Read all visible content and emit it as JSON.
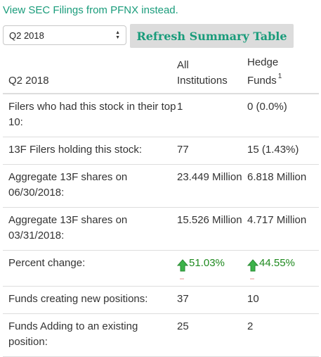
{
  "top_link": "View SEC Filings from PFNX instead.",
  "controls": {
    "quarter_select_value": "Q2 2018",
    "refresh_label": "Refresh Summary Table"
  },
  "table": {
    "headers": {
      "period": "Q2 2018",
      "all_institutions_line1": "All",
      "all_institutions_line2": "Institutions",
      "hedge_funds_line1": "Hedge",
      "hedge_funds_line2": "Funds",
      "hedge_funds_footnote": "1"
    },
    "rows": [
      {
        "label": "Filers who had this stock in their top 10:",
        "all": "1",
        "hedge": "0 (0.0%)"
      },
      {
        "label": "13F Filers holding this stock:",
        "all": "77",
        "hedge": "15 (1.43%)"
      },
      {
        "label": "Aggregate 13F shares on 06/30/2018:",
        "all": "23.449 Million",
        "hedge": "6.818 Million"
      },
      {
        "label": "Aggregate 13F shares on 03/31/2018:",
        "all": "15.526 Million",
        "hedge": "4.717 Million"
      },
      {
        "label": "Percent change:",
        "all": "51.03%",
        "hedge": "44.55%"
      },
      {
        "label": "Funds creating new positions:",
        "all": "37",
        "hedge": "10"
      },
      {
        "label": "Funds Adding to an existing position:",
        "all": "25",
        "hedge": "2"
      }
    ]
  },
  "icons": {
    "percent_change_icon": "up-arrow-icon",
    "select_arrows_icon": "select-updown-icon"
  },
  "colors": {
    "accent": "#1a9c7b",
    "positive": "#1f8a1f",
    "button_bg": "#dcdcdc",
    "border": "#dddddd"
  }
}
